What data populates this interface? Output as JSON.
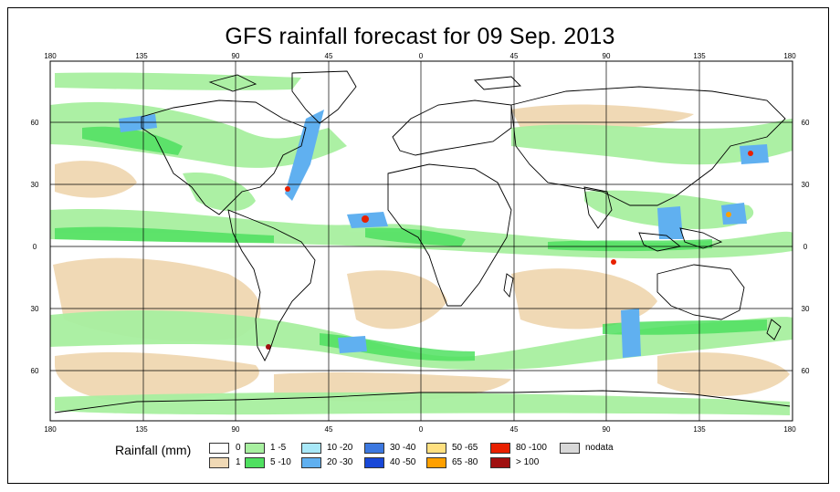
{
  "title": "GFS rainfall forecast for 09 Sep. 2013",
  "lon_labels": [
    "180",
    "135",
    "90",
    "45",
    "0",
    "45",
    "90",
    "135",
    "180"
  ],
  "lat_labels": [
    "60",
    "30",
    "0",
    "30",
    "60"
  ],
  "legend": {
    "title": "Rainfall (mm)",
    "items": [
      {
        "label": "0",
        "color": "#ffffff"
      },
      {
        "label": "1",
        "color": "#f0d9b5"
      },
      {
        "label": "1 -5",
        "color": "#a8f0a0"
      },
      {
        "label": "5 -10",
        "color": "#4fe060"
      },
      {
        "label": "10 -20",
        "color": "#a8e8f8"
      },
      {
        "label": "20 -30",
        "color": "#60b0f0"
      },
      {
        "label": "30 -40",
        "color": "#3c78e0"
      },
      {
        "label": "40 -50",
        "color": "#1848d8"
      },
      {
        "label": "50 -65",
        "color": "#ffe080"
      },
      {
        "label": "65 -80",
        "color": "#ffa000"
      },
      {
        "label": "80 -100",
        "color": "#e82000"
      },
      {
        "label": "> 100",
        "color": "#a01010"
      },
      {
        "label": "nodata",
        "color": "#d8d8d8"
      }
    ]
  }
}
